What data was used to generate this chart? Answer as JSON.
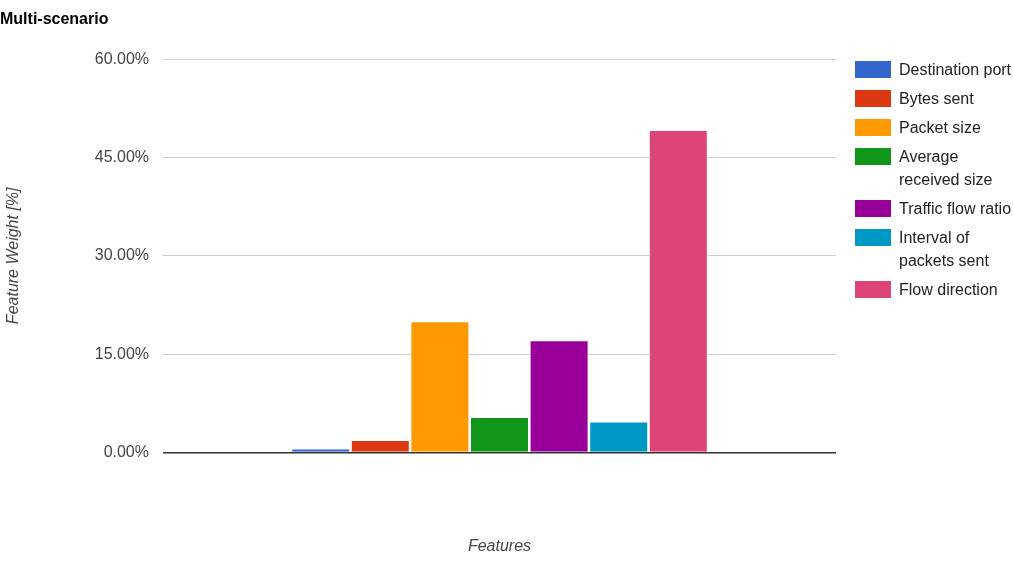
{
  "chart_data": {
    "type": "bar",
    "title": "Multi-scenario",
    "xlabel": "Features",
    "ylabel": "Feature Weight [%]",
    "categories": [
      null
    ],
    "series": [
      {
        "name": "Destination port",
        "color": "#3366cc",
        "values": [
          0.6
        ]
      },
      {
        "name": "Bytes sent",
        "color": "#dc3912",
        "values": [
          1.9
        ]
      },
      {
        "name": "Packet size",
        "color": "#ff9900",
        "values": [
          20.0
        ]
      },
      {
        "name": "Average received size",
        "color": "#109618",
        "values": [
          5.4
        ]
      },
      {
        "name": "Traffic flow ratio",
        "color": "#990099",
        "values": [
          17.1
        ]
      },
      {
        "name": "Interval of packets sent",
        "color": "#0099c6",
        "values": [
          4.7
        ]
      },
      {
        "name": "Flow direction",
        "color": "#dd4477",
        "values": [
          49.2
        ]
      }
    ],
    "ylim": [
      0,
      60
    ],
    "yticks": [
      {
        "value": 0,
        "label": "0.00%"
      },
      {
        "value": 15,
        "label": "15.00%"
      },
      {
        "value": 30,
        "label": "30.00%"
      },
      {
        "value": 45,
        "label": "45.00%"
      },
      {
        "value": 60,
        "label": "60.00%"
      }
    ],
    "grid": "y",
    "legend": "right"
  }
}
